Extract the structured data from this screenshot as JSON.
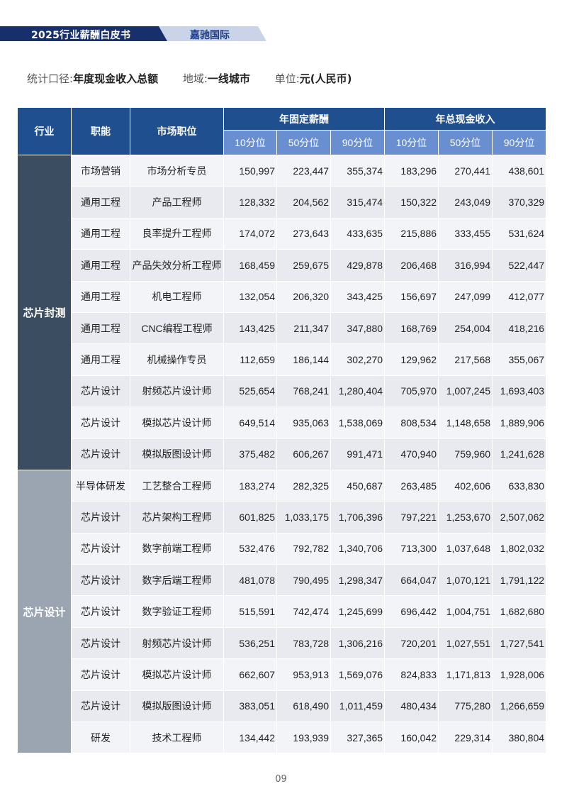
{
  "header": {
    "title": "2025行业薪酬白皮书",
    "brand": "嘉驰国际"
  },
  "meta": {
    "scope_label": "统计口径:",
    "scope_value": "年度现金收入总额",
    "region_label": "地域:",
    "region_value": "一线城市",
    "unit_label": "单位:",
    "unit_value": "元(人民币)"
  },
  "table": {
    "headers": {
      "industry": "行业",
      "function": "职能",
      "position": "市场职位",
      "fixed_group": "年固定薪酬",
      "total_group": "年总现金收入",
      "p10": "10分位",
      "p50": "50分位",
      "p90": "90分位"
    },
    "groups": [
      {
        "industry": "芯片封测",
        "rows": [
          [
            "市场营销",
            "市场分析专员",
            "150,997",
            "223,447",
            "355,374",
            "183,296",
            "270,441",
            "438,601"
          ],
          [
            "通用工程",
            "产品工程师",
            "128,332",
            "204,562",
            "315,474",
            "150,322",
            "243,049",
            "370,329"
          ],
          [
            "通用工程",
            "良率提升工程师",
            "174,072",
            "273,643",
            "433,635",
            "215,886",
            "333,455",
            "531,624"
          ],
          [
            "通用工程",
            "产品失效分析工程师",
            "168,459",
            "259,675",
            "429,878",
            "206,468",
            "316,994",
            "522,447"
          ],
          [
            "通用工程",
            "机电工程师",
            "132,054",
            "206,320",
            "343,425",
            "156,697",
            "247,099",
            "412,077"
          ],
          [
            "通用工程",
            "CNC编程工程师",
            "143,425",
            "211,347",
            "347,880",
            "168,769",
            "254,004",
            "418,216"
          ],
          [
            "通用工程",
            "机械操作专员",
            "112,659",
            "186,144",
            "302,270",
            "129,962",
            "217,568",
            "355,067"
          ],
          [
            "芯片设计",
            "射频芯片设计师",
            "525,654",
            "768,241",
            "1,280,404",
            "705,970",
            "1,007,245",
            "1,693,403"
          ],
          [
            "芯片设计",
            "模拟芯片设计师",
            "649,514",
            "935,063",
            "1,538,069",
            "808,534",
            "1,148,658",
            "1,889,906"
          ],
          [
            "芯片设计",
            "模拟版图设计师",
            "375,482",
            "606,267",
            "991,471",
            "470,940",
            "759,960",
            "1,241,628"
          ]
        ]
      },
      {
        "industry": "芯片设计",
        "rows": [
          [
            "半导体研发",
            "工艺整合工程师",
            "183,274",
            "282,325",
            "450,687",
            "263,485",
            "402,606",
            "633,830"
          ],
          [
            "芯片设计",
            "芯片架构工程师",
            "601,825",
            "1,033,175",
            "1,706,396",
            "797,221",
            "1,253,670",
            "2,507,062"
          ],
          [
            "芯片设计",
            "数字前端工程师",
            "532,476",
            "792,782",
            "1,340,706",
            "713,300",
            "1,037,648",
            "1,802,032"
          ],
          [
            "芯片设计",
            "数字后端工程师",
            "481,078",
            "790,495",
            "1,298,347",
            "664,047",
            "1,070,121",
            "1,791,122"
          ],
          [
            "芯片设计",
            "数字验证工程师",
            "515,591",
            "742,474",
            "1,245,699",
            "696,442",
            "1,004,751",
            "1,682,680"
          ],
          [
            "芯片设计",
            "射频芯片设计师",
            "536,251",
            "783,728",
            "1,306,216",
            "720,201",
            "1,027,551",
            "1,727,541"
          ],
          [
            "芯片设计",
            "模拟芯片设计师",
            "662,607",
            "953,913",
            "1,569,076",
            "824,833",
            "1,171,813",
            "1,928,006"
          ],
          [
            "芯片设计",
            "模拟版图设计师",
            "383,051",
            "618,490",
            "1,011,459",
            "480,434",
            "775,280",
            "1,266,659"
          ],
          [
            "研发",
            "技术工程师",
            "134,442",
            "193,939",
            "327,365",
            "160,042",
            "229,314",
            "380,804"
          ]
        ]
      }
    ]
  },
  "page_number": "09",
  "colors": {
    "header_navy": "#17306b",
    "header_light": "#c9d4ea",
    "table_header": "#1f4f8f",
    "table_subheader": "#6a8fd0",
    "industry_dark": "#3b4d61",
    "industry_grey": "#9aa5b1"
  }
}
